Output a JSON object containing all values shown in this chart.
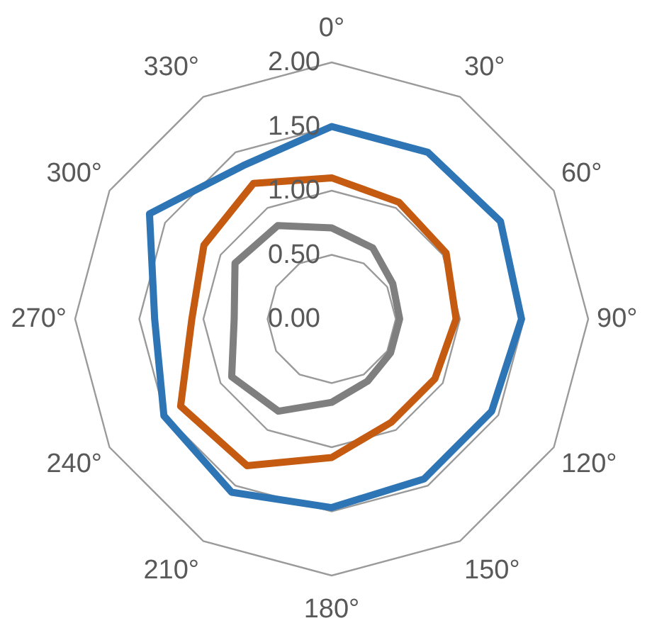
{
  "chart_data": {
    "type": "radar",
    "categories": [
      "0°",
      "30°",
      "60°",
      "90°",
      "120°",
      "150°",
      "180°",
      "210°",
      "240°",
      "270°",
      "300°",
      "330°"
    ],
    "ylim": [
      0,
      2
    ],
    "yticks": [
      {
        "value": 0,
        "label": "0.00"
      },
      {
        "value": 0.5,
        "label": "0.50"
      },
      {
        "value": 1,
        "label": "1.00"
      },
      {
        "value": 1.5,
        "label": "1.50"
      },
      {
        "value": 2,
        "label": "2.00"
      }
    ],
    "grid": true,
    "series": [
      {
        "color": "#2e75b6",
        "values": [
          1.5,
          1.5,
          1.52,
          1.48,
          1.44,
          1.44,
          1.47,
          1.56,
          1.51,
          1.38,
          1.64,
          1.38
        ]
      },
      {
        "color": "#c55a11",
        "values": [
          1.1,
          1.05,
          1.03,
          0.97,
          0.93,
          0.93,
          1.08,
          1.32,
          1.36,
          1.09,
          1.15,
          1.22
        ]
      },
      {
        "color": "#7f7f7f",
        "values": [
          0.71,
          0.64,
          0.55,
          0.53,
          0.53,
          0.56,
          0.65,
          0.83,
          0.9,
          0.76,
          0.87,
          0.84
        ]
      }
    ]
  }
}
